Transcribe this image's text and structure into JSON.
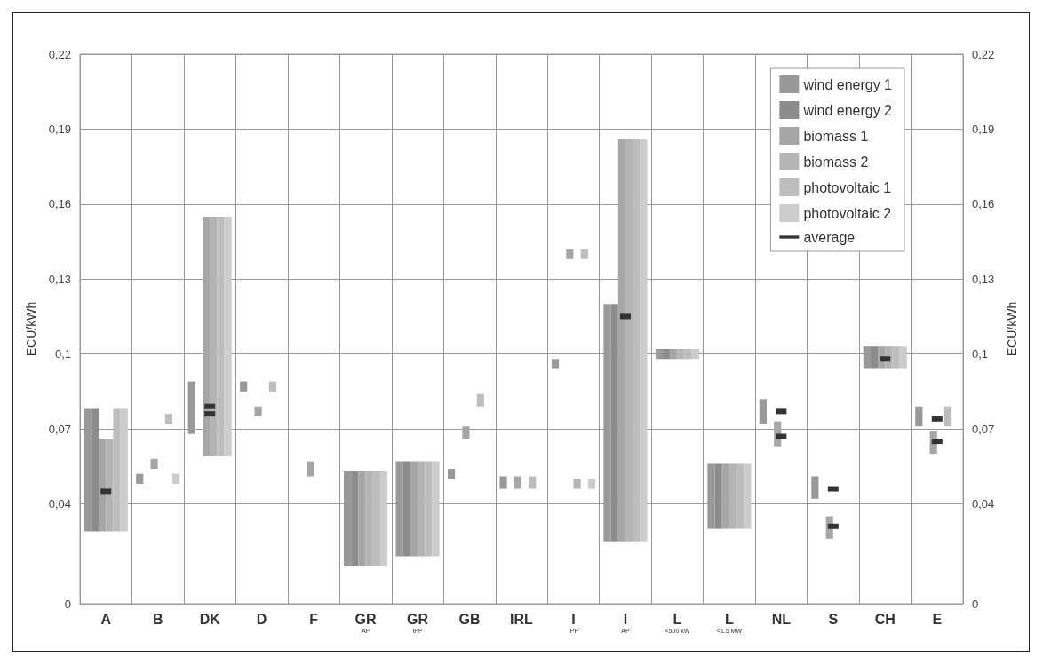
{
  "chart_data": {
    "type": "bar",
    "ylabel": "ECU/kWh",
    "y2label": "ECU/kWh",
    "categories": [
      "A",
      "B",
      "DK",
      "D",
      "F",
      "GR$_{AP}$",
      "GR$_{IPP}$",
      "GB",
      "IRL",
      "I$_{IPP}$",
      "I$_{AP}$",
      "L$_{<500 kW}$",
      "L$_{<1.5 MW}$",
      "NL",
      "S",
      "CH",
      "E"
    ],
    "ylim": [
      0,
      0.22
    ],
    "yticks": [
      0,
      {
        "value": 0.04,
        "label": "0,04"
      },
      {
        "value": 0.07,
        "label": "0,07"
      },
      {
        "value": 0.1,
        "label": "0,1"
      },
      {
        "value": 0.13,
        "label": "0,13"
      },
      {
        "value": 0.16,
        "label": "0,16"
      },
      {
        "value": 0.19,
        "label": "0,19"
      },
      {
        "value": 0.22,
        "label": "0,22"
      }
    ],
    "y2lim": [
      0,
      0.22
    ],
    "y2ticks": [
      0,
      {
        "value": 0.04,
        "label": "0,04"
      },
      {
        "value": 0.07,
        "label": "0,07"
      },
      {
        "value": 0.1,
        "label": "0,1"
      },
      {
        "value": 0.13,
        "label": "0,13"
      },
      {
        "value": 0.16,
        "label": "0,16"
      },
      {
        "value": 0.19,
        "label": "0,19"
      },
      {
        "value": 0.22,
        "label": "0,22"
      }
    ],
    "grid": true,
    "legend": "top right",
    "series": [
      {
        "name": "wind energy 1",
        "color": "#999999",
        "base": [
          0.029,
          0.048,
          0.068,
          0.085,
          null,
          0.015,
          0.019,
          0.05,
          0.046,
          0.094,
          0.025,
          0.098,
          0.03,
          0.072,
          0.042,
          0.094,
          0.071
        ],
        "values": [
          0.049,
          0.004,
          0.021,
          0.004,
          null,
          0.038,
          0.038,
          0.004,
          0.005,
          0.004,
          0.095,
          0.004,
          0.026,
          0.01,
          0.009,
          0.009,
          0.008
        ]
      },
      {
        "name": "wind energy 2",
        "color": "#8c8c8c",
        "base": [
          0.029,
          null,
          null,
          null,
          null,
          0.015,
          0.019,
          null,
          null,
          null,
          0.025,
          0.098,
          0.03,
          null,
          null,
          0.094,
          null
        ],
        "values": [
          0.049,
          null,
          null,
          null,
          null,
          0.038,
          0.038,
          null,
          null,
          null,
          0.095,
          0.004,
          0.026,
          null,
          null,
          0.009,
          null
        ]
      },
      {
        "name": "biomass 1",
        "color": "#a6a6a6",
        "base": [
          0.029,
          0.054,
          0.059,
          0.075,
          0.051,
          0.015,
          0.019,
          0.066,
          0.046,
          0.138,
          0.025,
          0.098,
          0.03,
          0.063,
          0.026,
          0.094,
          0.06
        ],
        "values": [
          0.037,
          0.004,
          0.096,
          0.004,
          0.006,
          0.038,
          0.038,
          0.005,
          0.005,
          0.004,
          0.161,
          0.004,
          0.026,
          0.01,
          0.009,
          0.009,
          0.009
        ]
      },
      {
        "name": "biomass 2",
        "color": "#b4b4b4",
        "base": [
          0.029,
          null,
          0.059,
          null,
          null,
          0.015,
          0.019,
          null,
          null,
          0.046,
          0.025,
          0.098,
          0.03,
          null,
          null,
          0.094,
          null
        ],
        "values": [
          0.037,
          null,
          0.096,
          null,
          null,
          0.038,
          0.038,
          null,
          null,
          0.004,
          0.161,
          0.004,
          0.026,
          null,
          null,
          0.009,
          null
        ]
      },
      {
        "name": "photovoltaic 1",
        "color": "#bdbdbd",
        "base": [
          0.029,
          0.072,
          0.059,
          0.085,
          null,
          0.015,
          0.019,
          0.079,
          0.046,
          0.138,
          0.025,
          0.098,
          0.03,
          null,
          null,
          0.094,
          0.071
        ],
        "values": [
          0.049,
          0.004,
          0.096,
          0.004,
          null,
          0.038,
          0.038,
          0.005,
          0.005,
          0.004,
          0.161,
          0.004,
          0.026,
          null,
          null,
          0.009,
          0.008
        ]
      },
      {
        "name": "photovoltaic 2",
        "color": "#cccccc",
        "base": [
          0.029,
          0.048,
          0.059,
          null,
          null,
          0.015,
          0.019,
          null,
          null,
          0.046,
          0.025,
          0.098,
          0.03,
          null,
          null,
          0.094,
          null
        ],
        "values": [
          0.049,
          0.004,
          0.096,
          null,
          null,
          0.038,
          0.038,
          null,
          null,
          0.004,
          0.161,
          0.004,
          0.026,
          null,
          null,
          0.009,
          null
        ]
      },
      {
        "name": "average",
        "type": "scatter",
        "color": "#333333",
        "x": [
          "A",
          "DK",
          "DK",
          "I$_{AP}$",
          "NL",
          "NL",
          "S",
          "S",
          "CH",
          "E",
          "E"
        ],
        "values": [
          0.045,
          0.079,
          0.076,
          0.115,
          0.077,
          0.067,
          0.046,
          0.031,
          0.098,
          0.074,
          0.065
        ]
      }
    ]
  }
}
